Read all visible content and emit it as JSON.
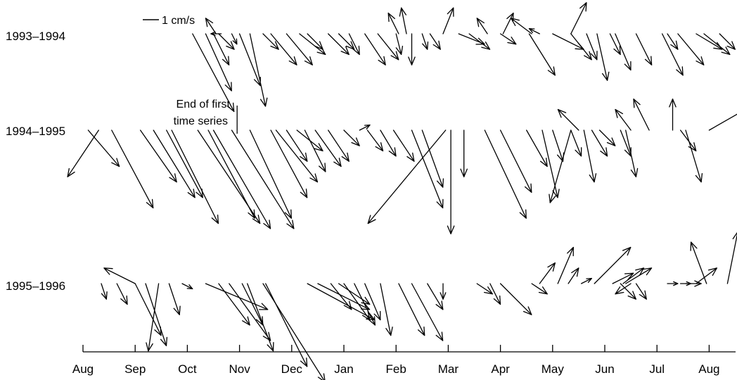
{
  "chart_data": {
    "type": "vector",
    "title": "",
    "xlabel": "",
    "ylabel": "",
    "months": [
      "Aug",
      "Sep",
      "Oct",
      "Nov",
      "Dec",
      "Jan",
      "Feb",
      "Mar",
      "Apr",
      "May",
      "Jun",
      "Jul",
      "Aug"
    ],
    "x_range_months": [
      0,
      12.4
    ],
    "scale_label": "1 cm/s",
    "scale_cm_s": 1,
    "annotation": [
      "End of first",
      "time series"
    ],
    "annotation_month": 2.9,
    "velocity_units": "cm/s",
    "series": [
      {
        "name": "1993–1994",
        "vectors": [
          {
            "t": 2.1,
            "u": 0.8,
            "v": -1.5
          },
          {
            "t": 2.35,
            "u": 0.5,
            "v": -1.1
          },
          {
            "t": 2.5,
            "u": 0.3,
            "v": -0.6
          },
          {
            "t": 2.6,
            "u": 0.3,
            "v": -0.3
          },
          {
            "t": 2.85,
            "u": 0.1,
            "v": -0.2
          },
          {
            "t": 3.0,
            "u": 0.4,
            "v": -1.0
          },
          {
            "t": 3.2,
            "u": 0.3,
            "v": -1.4
          },
          {
            "t": 3.45,
            "u": 0.3,
            "v": -0.3
          },
          {
            "t": 3.6,
            "u": 0.5,
            "v": -0.6
          },
          {
            "t": 3.9,
            "u": 0.5,
            "v": -0.6
          },
          {
            "t": 4.15,
            "u": 0.5,
            "v": -0.4
          },
          {
            "t": 4.3,
            "u": 0.3,
            "v": -0.3
          },
          {
            "t": 4.7,
            "u": 0.4,
            "v": -0.4
          },
          {
            "t": 4.9,
            "u": 0.3,
            "v": -0.3
          },
          {
            "t": 5.1,
            "u": 0.2,
            "v": -0.4
          },
          {
            "t": 5.4,
            "u": 0.4,
            "v": -0.6
          },
          {
            "t": 5.65,
            "u": 0.4,
            "v": -0.5
          },
          {
            "t": 6.0,
            "u": 0.1,
            "v": -0.4
          },
          {
            "t": 6.3,
            "u": 0.0,
            "v": -0.6
          },
          {
            "t": 6.65,
            "u": 0.2,
            "v": -0.3
          },
          {
            "t": 7.2,
            "u": 0.5,
            "v": -0.2
          },
          {
            "t": 7.4,
            "u": 0.4,
            "v": -0.3
          },
          {
            "t": 8.0,
            "u": 0.3,
            "v": -0.2
          },
          {
            "t": 8.55,
            "u": 0.5,
            "v": -0.8
          },
          {
            "t": 9.35,
            "u": 0.4,
            "v": -0.5
          },
          {
            "t": 9.65,
            "u": 0.2,
            "v": -0.5
          },
          {
            "t": 9.85,
            "u": 0.2,
            "v": -0.9
          },
          {
            "t": 10.2,
            "u": 0.3,
            "v": -0.7
          },
          {
            "t": 10.6,
            "u": 0.3,
            "v": -0.6
          },
          {
            "t": 11.1,
            "u": 0.4,
            "v": -0.8
          },
          {
            "t": 11.4,
            "u": 0.5,
            "v": -0.6
          },
          {
            "t": 11.9,
            "u": 0.5,
            "v": -0.4
          },
          {
            "t": 12.2,
            "u": 0.3,
            "v": -0.3
          },
          {
            "t": 2.55,
            "u": -0.2,
            "v": 0.3
          },
          {
            "t": 2.65,
            "u": -0.2,
            "v": 0.0
          },
          {
            "t": 6.05,
            "u": -0.2,
            "v": 0.4
          },
          {
            "t": 6.2,
            "u": -0.1,
            "v": 0.5
          },
          {
            "t": 6.5,
            "u": 0.1,
            "v": -0.3
          },
          {
            "t": 6.9,
            "u": 0.2,
            "v": 0.5
          },
          {
            "t": 7.75,
            "u": -0.2,
            "v": 0.3
          },
          {
            "t": 8.05,
            "u": 0.2,
            "v": 0.4
          },
          {
            "t": 8.6,
            "u": -0.4,
            "v": 0.3
          },
          {
            "t": 8.75,
            "u": -0.2,
            "v": 0.1
          },
          {
            "t": 9.0,
            "u": 0.6,
            "v": -0.3
          },
          {
            "t": 9.35,
            "u": 0.3,
            "v": 0.6
          },
          {
            "t": 10.1,
            "u": 0.2,
            "v": -0.4
          },
          {
            "t": 11.2,
            "u": 0.2,
            "v": -0.3
          },
          {
            "t": 11.75,
            "u": 0.5,
            "v": -0.3
          }
        ]
      },
      {
        "name": "1994–1995",
        "vectors": [
          {
            "t": 0.3,
            "u": -0.6,
            "v": -0.9
          },
          {
            "t": 0.1,
            "u": 0.6,
            "v": -0.7
          },
          {
            "t": 0.55,
            "u": 0.8,
            "v": -1.5
          },
          {
            "t": 1.1,
            "u": 0.7,
            "v": -1.0
          },
          {
            "t": 1.35,
            "u": 0.8,
            "v": -1.3
          },
          {
            "t": 1.7,
            "u": 0.9,
            "v": -1.8
          },
          {
            "t": 1.6,
            "u": 0.7,
            "v": -1.3
          },
          {
            "t": 2.2,
            "u": 1.2,
            "v": -1.8
          },
          {
            "t": 2.4,
            "u": 0.9,
            "v": -1.7
          },
          {
            "t": 2.5,
            "u": 1.1,
            "v": -1.9
          },
          {
            "t": 2.85,
            "u": 1.2,
            "v": -1.9
          },
          {
            "t": 3.2,
            "u": 0.8,
            "v": -1.7
          },
          {
            "t": 3.6,
            "u": 0.7,
            "v": -1.3
          },
          {
            "t": 3.7,
            "u": 0.8,
            "v": -1.0
          },
          {
            "t": 3.9,
            "u": 0.4,
            "v": -0.6
          },
          {
            "t": 4.1,
            "u": 0.5,
            "v": -0.4
          },
          {
            "t": 4.25,
            "u": 0.4,
            "v": -0.8
          },
          {
            "t": 4.45,
            "u": 0.5,
            "v": -0.7
          },
          {
            "t": 4.7,
            "u": 0.4,
            "v": -0.6
          },
          {
            "t": 5.0,
            "u": 0.3,
            "v": -0.3
          },
          {
            "t": 5.45,
            "u": 0.3,
            "v": -0.4
          },
          {
            "t": 5.7,
            "u": 0.3,
            "v": -0.5
          },
          {
            "t": 5.95,
            "u": 0.4,
            "v": -0.6
          },
          {
            "t": 6.3,
            "u": 0.6,
            "v": -1.5
          },
          {
            "t": 6.5,
            "u": 0.4,
            "v": -1.1
          },
          {
            "t": 7.05,
            "u": 0.0,
            "v": -2.0
          },
          {
            "t": 7.3,
            "u": 0.0,
            "v": -0.9
          },
          {
            "t": 7.7,
            "u": 0.8,
            "v": -1.7
          },
          {
            "t": 8.0,
            "u": 0.6,
            "v": -1.2
          },
          {
            "t": 8.5,
            "u": 0.4,
            "v": -0.7
          },
          {
            "t": 8.8,
            "u": 0.3,
            "v": -1.3
          },
          {
            "t": 9.35,
            "u": 0.2,
            "v": -0.5
          },
          {
            "t": 9.6,
            "u": 0.2,
            "v": -1.0
          },
          {
            "t": 10.4,
            "u": 0.2,
            "v": -0.9
          },
          {
            "t": 11.55,
            "u": 0.3,
            "v": -1.0
          },
          {
            "t": 6.95,
            "u": -1.5,
            "v": -1.8
          },
          {
            "t": 9.35,
            "u": -0.4,
            "v": -1.4
          },
          {
            "t": 9.0,
            "u": 0.2,
            "v": -0.6
          },
          {
            "t": 9.5,
            "u": -0.4,
            "v": 0.4
          },
          {
            "t": 10.5,
            "u": -0.3,
            "v": 0.4
          },
          {
            "t": 10.85,
            "u": -0.3,
            "v": 0.6
          },
          {
            "t": 11.3,
            "u": 0.0,
            "v": 0.6
          },
          {
            "t": 12.0,
            "u": 1.4,
            "v": 0.8
          },
          {
            "t": 9.75,
            "u": 0.3,
            "v": -0.5
          },
          {
            "t": 11.45,
            "u": 0.3,
            "v": -0.4
          },
          {
            "t": 5.3,
            "u": 0.2,
            "v": 0.1
          },
          {
            "t": 9.9,
            "u": 0.3,
            "v": -0.3
          },
          {
            "t": 10.3,
            "u": 0.2,
            "v": -0.5
          }
        ]
      },
      {
        "name": "1995–1996",
        "vectors": [
          {
            "t": 0.35,
            "u": 0.1,
            "v": -0.3
          },
          {
            "t": 0.65,
            "u": 0.2,
            "v": -0.4
          },
          {
            "t": 1.0,
            "u": -0.6,
            "v": 0.3
          },
          {
            "t": 1.0,
            "u": 0.5,
            "v": -1.0
          },
          {
            "t": 1.2,
            "u": 0.4,
            "v": -1.2
          },
          {
            "t": 1.45,
            "u": -0.2,
            "v": -1.3
          },
          {
            "t": 1.65,
            "u": 0.2,
            "v": -0.6
          },
          {
            "t": 1.9,
            "u": 0.2,
            "v": -0.1
          },
          {
            "t": 2.35,
            "u": 1.2,
            "v": -0.5
          },
          {
            "t": 2.6,
            "u": 0.6,
            "v": -0.8
          },
          {
            "t": 2.8,
            "u": 0.8,
            "v": -1.1
          },
          {
            "t": 3.05,
            "u": 0.4,
            "v": -0.8
          },
          {
            "t": 3.15,
            "u": 0.5,
            "v": -1.3
          },
          {
            "t": 3.45,
            "u": 1.2,
            "v": -1.9
          },
          {
            "t": 3.5,
            "u": 0.8,
            "v": -1.6
          },
          {
            "t": 4.3,
            "u": 1.3,
            "v": -0.7
          },
          {
            "t": 4.5,
            "u": 1.0,
            "v": -0.5
          },
          {
            "t": 4.75,
            "u": 0.4,
            "v": -0.5
          },
          {
            "t": 5.0,
            "u": 0.5,
            "v": -0.7
          },
          {
            "t": 5.2,
            "u": 0.4,
            "v": -0.8
          },
          {
            "t": 5.4,
            "u": 0.3,
            "v": -0.7
          },
          {
            "t": 5.7,
            "u": 0.2,
            "v": -1.0
          },
          {
            "t": 6.05,
            "u": 0.5,
            "v": -1.0
          },
          {
            "t": 6.3,
            "u": 0.6,
            "v": -1.1
          },
          {
            "t": 6.6,
            "u": 0.3,
            "v": -0.5
          },
          {
            "t": 6.9,
            "u": 0.0,
            "v": -0.3
          },
          {
            "t": 7.55,
            "u": 0.3,
            "v": -0.2
          },
          {
            "t": 7.8,
            "u": 0.2,
            "v": -0.4
          },
          {
            "t": 8.0,
            "u": 0.6,
            "v": -0.6
          },
          {
            "t": 8.6,
            "u": 0.3,
            "v": -0.2
          },
          {
            "t": 8.75,
            "u": 0.3,
            "v": 0.4
          },
          {
            "t": 9.1,
            "u": 0.3,
            "v": 0.7
          },
          {
            "t": 9.3,
            "u": 0.2,
            "v": 0.3
          },
          {
            "t": 9.55,
            "u": 0.2,
            "v": 0.1
          },
          {
            "t": 9.8,
            "u": 0.7,
            "v": 0.7
          },
          {
            "t": 10.15,
            "u": 0.4,
            "v": 0.2
          },
          {
            "t": 10.35,
            "u": 0.4,
            "v": 0.3
          },
          {
            "t": 10.5,
            "u": -0.3,
            "v": -0.2
          },
          {
            "t": 10.6,
            "u": 0.2,
            "v": -0.3
          },
          {
            "t": 11.2,
            "u": 0.2,
            "v": 0.0
          },
          {
            "t": 11.55,
            "u": 0.3,
            "v": 0.0
          },
          {
            "t": 11.75,
            "u": 0.4,
            "v": 0.3
          },
          {
            "t": 11.95,
            "u": -0.3,
            "v": 0.8
          },
          {
            "t": 12.35,
            "u": 0.2,
            "v": 1.0
          },
          {
            "t": 4.9,
            "u": 0.6,
            "v": -0.4
          },
          {
            "t": 10.4,
            "u": 0.5,
            "v": 0.3
          },
          {
            "t": 10.3,
            "u": 0.3,
            "v": -0.3
          },
          {
            "t": 11.45,
            "u": 0.2,
            "v": 0.0
          }
        ]
      }
    ]
  }
}
